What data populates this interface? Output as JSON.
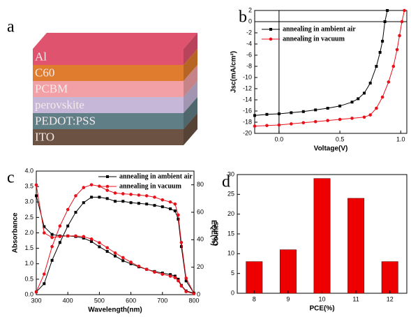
{
  "diagram": {
    "panel_label": "a",
    "layers": [
      {
        "label": "Al",
        "color": "#e0536e"
      },
      {
        "label": "C60",
        "color": "#e07c2d"
      },
      {
        "label": "PCBM",
        "color": "#f2a0a6"
      },
      {
        "label": "perovskite",
        "color": "#c6b6d8"
      },
      {
        "label": "PEDOT:PSS",
        "color": "#5f7e86"
      },
      {
        "label": "ITO",
        "color": "#6b5242"
      }
    ]
  },
  "chart_data": [
    {
      "type": "line",
      "panel_label": "b",
      "x_label": "Voltage(V)",
      "y_label": "Jsc(mA/cm²)",
      "xlim": [
        -0.2,
        1.05
      ],
      "xticks": [
        {
          "value": 0,
          "label": "0.0"
        },
        0.5,
        {
          "value": 1,
          "label": "1.0"
        }
      ],
      "ylim": [
        -20,
        2
      ],
      "yticks": [
        2,
        0,
        -2,
        -4,
        -6,
        -8,
        -10,
        -12,
        -14,
        -16,
        -18,
        -20
      ],
      "zero_lines": true,
      "legend": "upper left",
      "series": [
        {
          "name": "annealing in ambient air",
          "color": "#000000",
          "marker": "square",
          "x": [
            -0.2,
            -0.1,
            0,
            0.1,
            0.2,
            0.3,
            0.4,
            0.5,
            0.6,
            0.65,
            0.7,
            0.75,
            0.8,
            0.83,
            0.85,
            0.87,
            0.89
          ],
          "values": [
            -16.8,
            -16.6,
            -16.5,
            -16.3,
            -16.1,
            -15.8,
            -15.5,
            -15.1,
            -14.4,
            -13.8,
            -12.8,
            -11,
            -8,
            -5.5,
            -3.5,
            0,
            2
          ]
        },
        {
          "name": "annealing in vacuum",
          "color": "#e8101a",
          "marker": "circle",
          "x": [
            -0.2,
            -0.1,
            0,
            0.1,
            0.2,
            0.3,
            0.4,
            0.5,
            0.6,
            0.7,
            0.75,
            0.8,
            0.85,
            0.9,
            0.94,
            0.97,
            0.99,
            1.01,
            1.03
          ],
          "values": [
            -18.7,
            -18.6,
            -18.5,
            -18.3,
            -18.1,
            -17.9,
            -17.7,
            -17.5,
            -17.3,
            -17.1,
            -16.7,
            -15.5,
            -13.5,
            -10.8,
            -8,
            -5,
            -2.5,
            0,
            2
          ]
        }
      ]
    },
    {
      "type": "line",
      "panel_label": "c",
      "x_label": "Wavelength(nm)",
      "y_label": "Absorbance",
      "y2_label": "EQE(%)",
      "xlim": [
        300,
        800
      ],
      "xticks": [
        300,
        400,
        500,
        600,
        700,
        800
      ],
      "ylim": [
        0,
        4
      ],
      "yticks": [
        {
          "value": 0,
          "label": "0.0"
        },
        0.5,
        {
          "value": 1,
          "label": "1.0"
        },
        1.5,
        {
          "value": 2,
          "label": "2.0"
        },
        2.5,
        {
          "value": 3,
          "label": "3.0"
        },
        3.5,
        {
          "value": 4,
          "label": "4.0"
        }
      ],
      "y2lim": [
        0,
        90
      ],
      "y2ticks": [
        0,
        20,
        40,
        60,
        80
      ],
      "legend": "upper right",
      "x": [
        300,
        325,
        350,
        375,
        400,
        425,
        450,
        475,
        500,
        525,
        550,
        575,
        600,
        625,
        650,
        675,
        700,
        725,
        740,
        750,
        760,
        775,
        800
      ],
      "series": [
        {
          "name": "annealing in ambient air",
          "color": "#000000",
          "marker": "square",
          "axis": "y2",
          "values": [
            2,
            8,
            25,
            38,
            50,
            60,
            67,
            71,
            71,
            70,
            68,
            68,
            67,
            66.5,
            66,
            65,
            64,
            62.5,
            61,
            55,
            35,
            10,
            1
          ]
        },
        {
          "name": "annealing in vacuum",
          "color": "#e8101a",
          "marker": "circle",
          "axis": "y2",
          "values": [
            2,
            15,
            35,
            50,
            62,
            72,
            78,
            80,
            79,
            76,
            74,
            73.5,
            73,
            72.5,
            72,
            71,
            69,
            67.5,
            66,
            58,
            38,
            12,
            1
          ]
        },
        {
          "color": "#000000",
          "marker": "square",
          "values": [
            3.2,
            2.2,
            1.95,
            1.9,
            1.9,
            1.88,
            1.83,
            1.72,
            1.55,
            1.4,
            1.25,
            1.1,
            1,
            0.9,
            0.82,
            0.75,
            0.7,
            0.65,
            0.6,
            0.5,
            0.3,
            0.12,
            0.05
          ]
        },
        {
          "color": "#e8101a",
          "marker": "circle",
          "values": [
            3.55,
            2,
            1.85,
            1.88,
            1.9,
            1.9,
            1.88,
            1.8,
            1.68,
            1.52,
            1.35,
            1.2,
            1.05,
            0.92,
            0.82,
            0.73,
            0.66,
            0.6,
            0.55,
            0.45,
            0.28,
            0.1,
            0.03
          ]
        }
      ]
    },
    {
      "type": "bar",
      "panel_label": "d",
      "x_label": "PCE(%)",
      "y_label": "Counts",
      "categories": [
        "8",
        "9",
        "10",
        "11",
        "12"
      ],
      "values": [
        8,
        11,
        29,
        24,
        8
      ],
      "color": "#ee0000",
      "ylim": [
        0,
        30
      ],
      "yticks": [
        0,
        5,
        10,
        15,
        20,
        25,
        30
      ]
    }
  ]
}
